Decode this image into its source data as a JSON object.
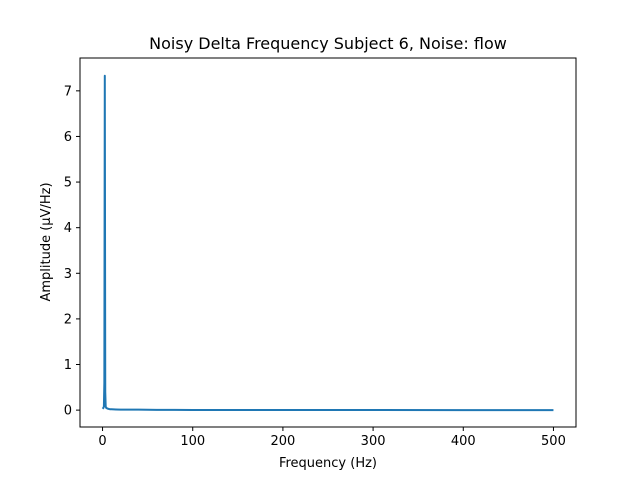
{
  "chart_data": {
    "type": "line",
    "title": "Noisy Delta Frequency Subject 6, Noise: flow",
    "xlabel": "Frequency (Hz)",
    "ylabel": "Amplitude (μV/Hz)",
    "xlim": [
      -25,
      525
    ],
    "ylim": [
      -0.37,
      7.72
    ],
    "xticks": [
      0,
      100,
      200,
      300,
      400,
      500
    ],
    "yticks": [
      0,
      1,
      2,
      3,
      4,
      5,
      6,
      7
    ],
    "grid": false,
    "series": [
      {
        "color": "#1f77b4",
        "x": [
          0,
          1,
          1.5,
          2,
          2.5,
          3,
          3.5,
          4,
          5,
          6,
          8,
          10,
          15,
          20,
          30,
          40,
          50,
          60,
          80,
          100,
          150,
          200,
          300,
          400,
          500
        ],
        "y": [
          0.03,
          0.05,
          0.08,
          0.6,
          7.33,
          0.4,
          0.08,
          0.05,
          0.04,
          0.03,
          0.02,
          0.02,
          0.015,
          0.01,
          0.01,
          0.01,
          0.008,
          0.006,
          0.005,
          0.004,
          0.003,
          0.002,
          0.002,
          0.001,
          0.001
        ]
      }
    ]
  }
}
